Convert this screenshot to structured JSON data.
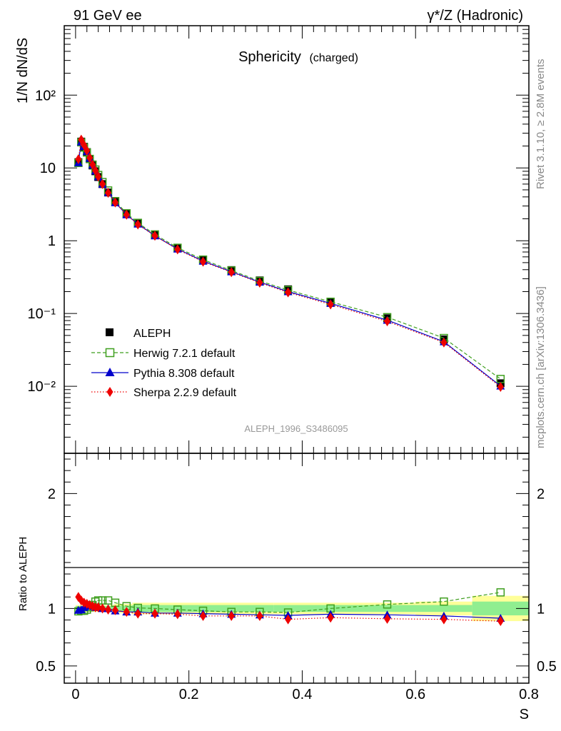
{
  "header": {
    "left": "91 GeV ee",
    "right": "γ*/Z (Hadronic)"
  },
  "side_labels": {
    "rivet": "Rivet 3.1.10, ≥ 2.8M events",
    "mcplots": "mcplots.cern.ch [arXiv:1306.3436]"
  },
  "chart_data": [
    {
      "type": "line",
      "scale": "log",
      "title": "Sphericity",
      "title_suffix": "(charged)",
      "ylabel": "1/N dN/dS",
      "xlabel": "",
      "watermark": "ALEPH_1996_S3486095",
      "xlim": [
        -0.02,
        0.8
      ],
      "ylim": [
        0.0012,
        900
      ],
      "y_ticks_major": [
        "10⁻²",
        "10⁻¹",
        "1",
        "10",
        "10²"
      ],
      "legend_placement": "bottom-left",
      "x": [
        0.005,
        0.01,
        0.015,
        0.02,
        0.025,
        0.03,
        0.035,
        0.04,
        0.0475,
        0.0575,
        0.07,
        0.09,
        0.11,
        0.14,
        0.18,
        0.225,
        0.275,
        0.325,
        0.375,
        0.45,
        0.55,
        0.65,
        0.75
      ],
      "series": [
        {
          "name": "ALEPH",
          "color": "#000000",
          "marker": "square-filled",
          "values": [
            12.0,
            23.0,
            19.5,
            16.5,
            13.2,
            10.8,
            9.0,
            7.5,
            6.0,
            4.6,
            3.4,
            2.35,
            1.75,
            1.22,
            0.8,
            0.55,
            0.395,
            0.285,
            0.215,
            0.145,
            0.086,
            0.044,
            0.011
          ]
        },
        {
          "name": "Herwig 7.2.1 default",
          "color": "#3f9f1f",
          "marker": "square-open",
          "dash": "dashed",
          "values": [
            11.7,
            22.5,
            19.0,
            16.3,
            13.3,
            11.1,
            9.5,
            8.0,
            6.4,
            4.9,
            3.5,
            2.38,
            1.76,
            1.22,
            0.8,
            0.55,
            0.39,
            0.28,
            0.21,
            0.145,
            0.089,
            0.046,
            0.0126
          ]
        },
        {
          "name": "Pythia 8.308 default",
          "color": "#0000cc",
          "marker": "triangle",
          "values": [
            11.8,
            22.8,
            19.8,
            16.8,
            13.6,
            11.0,
            9.1,
            7.6,
            6.0,
            4.6,
            3.33,
            2.28,
            1.7,
            1.17,
            0.77,
            0.525,
            0.375,
            0.27,
            0.2,
            0.138,
            0.081,
            0.041,
            0.0101
          ]
        },
        {
          "name": "Sherpa 2.2.9 default",
          "color": "#ee0000",
          "marker": "diamond",
          "dash": "dotted",
          "values": [
            13.2,
            24.5,
            20.6,
            17.3,
            13.8,
            11.1,
            9.2,
            7.6,
            6.0,
            4.55,
            3.35,
            2.28,
            1.67,
            1.17,
            0.76,
            0.515,
            0.37,
            0.265,
            0.195,
            0.133,
            0.078,
            0.04,
            0.0098
          ]
        }
      ]
    },
    {
      "type": "line",
      "ylabel": "Ratio to ALEPH",
      "xlabel": "S",
      "xlim": [
        -0.02,
        0.8
      ],
      "ylim": [
        0.35,
        2.35
      ],
      "y_ticks_major": [
        "0.5",
        "1",
        "2"
      ],
      "x_ticks": [
        "0",
        "0.2",
        "0.4",
        "0.6",
        "0.8"
      ],
      "bands": {
        "green": {
          "color": "#90ee90",
          "segments": [
            [
              0.0,
              0.0675,
              0.02
            ],
            [
              0.0675,
              0.1,
              0.025
            ],
            [
              0.1,
              0.35,
              0.03
            ],
            [
              0.35,
              0.7,
              0.03
            ],
            [
              0.7,
              0.8,
              0.06
            ]
          ]
        },
        "yellow": {
          "color": "#ffff99",
          "segments": [
            [
              0.0,
              0.0675,
              0.03
            ],
            [
              0.0675,
              0.1,
              0.04
            ],
            [
              0.1,
              0.35,
              0.05
            ],
            [
              0.35,
              0.6,
              0.05
            ],
            [
              0.6,
              0.7,
              0.06
            ],
            [
              0.7,
              0.8,
              0.11
            ]
          ]
        }
      },
      "x": [
        0.005,
        0.01,
        0.015,
        0.02,
        0.025,
        0.03,
        0.035,
        0.04,
        0.0475,
        0.0575,
        0.07,
        0.09,
        0.11,
        0.14,
        0.18,
        0.225,
        0.275,
        0.325,
        0.375,
        0.45,
        0.55,
        0.65,
        0.75
      ],
      "series": [
        {
          "name": "Herwig 7.2.1 default",
          "color": "#3f9f1f",
          "marker": "square-open",
          "dash": "dashed",
          "values": [
            0.975,
            0.98,
            0.98,
            0.99,
            1.01,
            1.03,
            1.06,
            1.07,
            1.07,
            1.07,
            1.05,
            1.02,
            1.005,
            1.0,
            0.99,
            0.98,
            0.97,
            0.97,
            0.965,
            1.0,
            1.035,
            1.06,
            1.14
          ]
        },
        {
          "name": "Pythia 8.308 default",
          "color": "#0000cc",
          "marker": "triangle",
          "values": [
            0.985,
            0.99,
            1.01,
            1.02,
            1.03,
            1.02,
            1.01,
            1.01,
            1.0,
            1.0,
            0.98,
            0.97,
            0.97,
            0.96,
            0.96,
            0.955,
            0.95,
            0.945,
            0.94,
            0.95,
            0.945,
            0.935,
            0.915
          ]
        },
        {
          "name": "Sherpa 2.2.9 default",
          "color": "#ee0000",
          "marker": "diamond",
          "dash": "dotted",
          "values": [
            1.1,
            1.07,
            1.05,
            1.04,
            1.03,
            1.02,
            1.01,
            1.01,
            1.0,
            0.99,
            0.985,
            0.97,
            0.955,
            0.955,
            0.95,
            0.935,
            0.935,
            0.935,
            0.905,
            0.92,
            0.91,
            0.905,
            0.89
          ]
        }
      ]
    }
  ]
}
